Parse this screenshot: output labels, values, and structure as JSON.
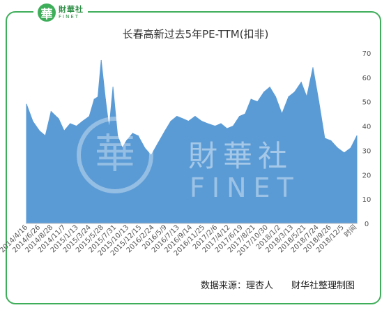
{
  "brand": {
    "cn": "財華社",
    "en": "FINET",
    "mark": "華"
  },
  "source_note": "数据来源：理杏人　　财华社整理制图",
  "chart_data": {
    "type": "area",
    "title": "长春高新过去5年PE-TTM(扣非)",
    "xlabel": "",
    "ylabel": "",
    "ylim": [
      0,
      70
    ],
    "y_ticks": [
      0,
      10,
      20,
      30,
      40,
      50,
      60,
      70
    ],
    "y_axis_side": "right",
    "grid": false,
    "legend": "none",
    "color": "#5b9bd5",
    "x_tick_labels": [
      "2014/4/16",
      "2014/6/26",
      "2014/8/28",
      "2014/11/7",
      "2015/1/13",
      "2015/3/24",
      "2015/5/28",
      "2015/7/31",
      "2015/10/13",
      "2015/12/15",
      "2016/2/24",
      "2016/5/9",
      "2016/7/13",
      "2016/9/14",
      "2016/11/25",
      "2017/2/6",
      "2017/4/12",
      "2017/6/19",
      "2017/8/21",
      "2017/10/30",
      "2018/1/2",
      "2018/3/13",
      "2018/5/21",
      "2018/7/24",
      "2018/9/26",
      "2018/12/5",
      "时间"
    ],
    "x": [
      "2014/4/16",
      "2014/5/20",
      "2014/6/26",
      "2014/7/28",
      "2014/8/28",
      "2014/10/8",
      "2014/11/7",
      "2014/12/10",
      "2015/1/13",
      "2015/2/15",
      "2015/3/24",
      "2015/4/20",
      "2015/5/10",
      "2015/5/28",
      "2015/6/20",
      "2015/7/10",
      "2015/7/31",
      "2015/8/25",
      "2015/9/20",
      "2015/10/13",
      "2015/11/15",
      "2015/12/15",
      "2016/1/20",
      "2016/2/24",
      "2016/4/1",
      "2016/5/9",
      "2016/6/10",
      "2016/7/13",
      "2016/8/15",
      "2016/9/14",
      "2016/10/20",
      "2016/11/25",
      "2016/12/28",
      "2017/2/6",
      "2017/3/10",
      "2017/4/12",
      "2017/5/15",
      "2017/6/19",
      "2017/7/20",
      "2017/8/21",
      "2017/9/25",
      "2017/10/30",
      "2017/12/1",
      "2018/1/2",
      "2018/2/5",
      "2018/3/13",
      "2018/4/15",
      "2018/5/21",
      "2018/6/20",
      "2018/7/24",
      "2018/8/25",
      "2018/9/26",
      "2018/10/30",
      "2018/12/5",
      "2019/1/10",
      "2019/2/15",
      "2019/3/20"
    ],
    "values": [
      49,
      42,
      38,
      36,
      46,
      43,
      38,
      41,
      40,
      42,
      44,
      51,
      52,
      67,
      51,
      39,
      56,
      36,
      31,
      34,
      37,
      36,
      31,
      28,
      33,
      38,
      42,
      44,
      43,
      42,
      44,
      42,
      41,
      40,
      41,
      39,
      40,
      44,
      45,
      51,
      50,
      54,
      56,
      52,
      45,
      52,
      54,
      58,
      52,
      64,
      50,
      35,
      34,
      31,
      29,
      31,
      36
    ]
  }
}
